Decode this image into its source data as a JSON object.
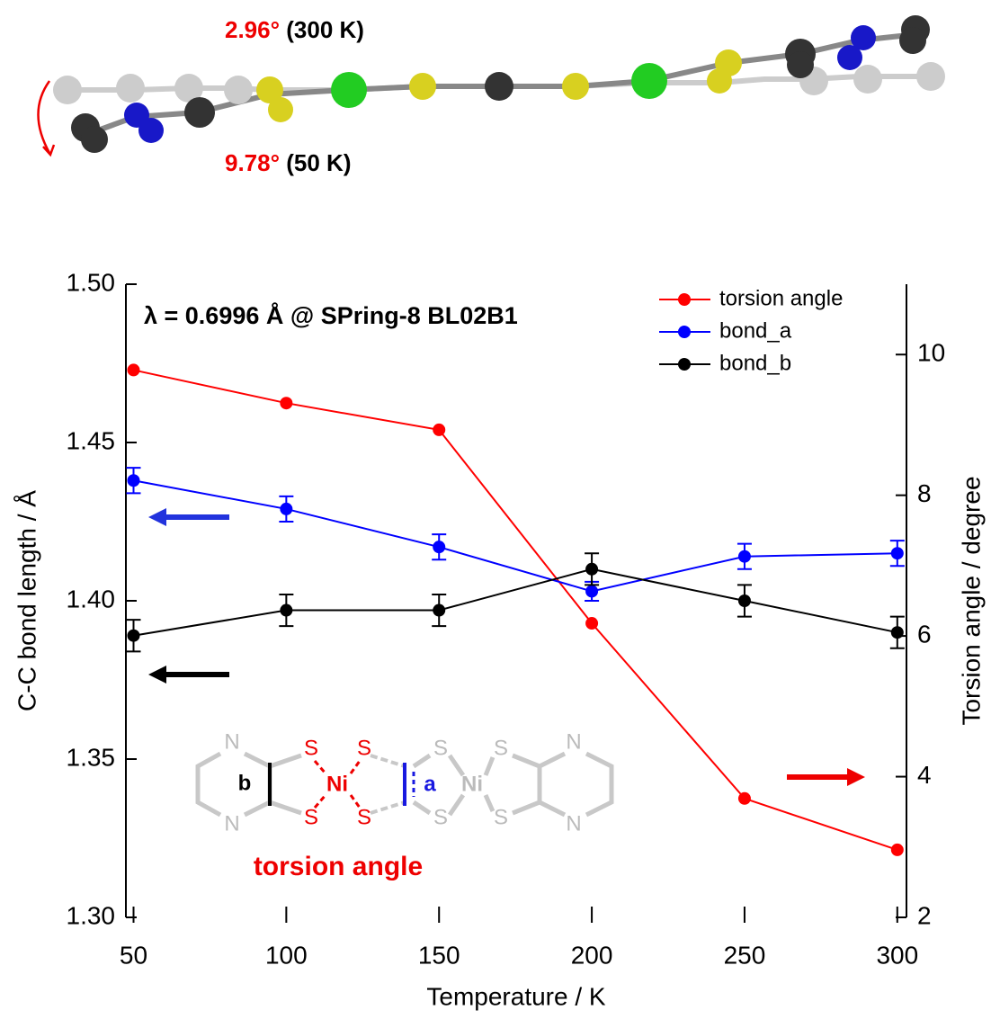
{
  "chart_data": {
    "type": "line",
    "annotation": "λ = 0.6996 Å @ SPring-8 BL02B1",
    "xlabel": "Temperature / K",
    "ylabel": "C-C bond length / Å",
    "y2label": "Torsion angle / degree",
    "x": [
      50,
      100,
      150,
      200,
      250,
      300
    ],
    "xlim": [
      47.5,
      303
    ],
    "xticks": [
      50,
      100,
      150,
      200,
      250,
      300
    ],
    "ylim": [
      1.3,
      1.5
    ],
    "yticks": [
      {
        "value": 1.3,
        "label": "1.30"
      },
      1.35,
      {
        "value": 1.4,
        "label": "1.40"
      },
      1.45,
      {
        "value": 1.5,
        "label": "1.50"
      }
    ],
    "y2lim": [
      2,
      11
    ],
    "y2ticks": [
      2,
      4,
      6,
      8,
      10
    ],
    "legend": "top-right",
    "series": [
      {
        "name": "torsion angle",
        "color": "#ff0000",
        "axis": "y2",
        "values": [
          9.78,
          9.31,
          8.93,
          6.18,
          3.69,
          2.96
        ]
      },
      {
        "name": "bond_a",
        "color": "#0000ff",
        "values": [
          1.438,
          1.429,
          1.417,
          1.403,
          1.414,
          1.415
        ],
        "errors": [
          0.004,
          0.004,
          0.004,
          0.003,
          0.004,
          0.004
        ]
      },
      {
        "name": "bond_b",
        "color": "#000000",
        "values": [
          1.389,
          1.397,
          1.397,
          1.41,
          1.4,
          1.39
        ],
        "errors": [
          0.005,
          0.005,
          0.005,
          0.005,
          0.005,
          0.005
        ]
      }
    ]
  },
  "structure": {
    "angle_300": {
      "angle": "2.96°",
      "temp": "(300 K)"
    },
    "angle_50": {
      "angle": "9.78°",
      "temp": "(50 K)"
    }
  },
  "scheme": {
    "n": "N",
    "s": "S",
    "ni": "Ni",
    "bond_b": "b",
    "bond_a": "a",
    "caption": "torsion angle"
  }
}
